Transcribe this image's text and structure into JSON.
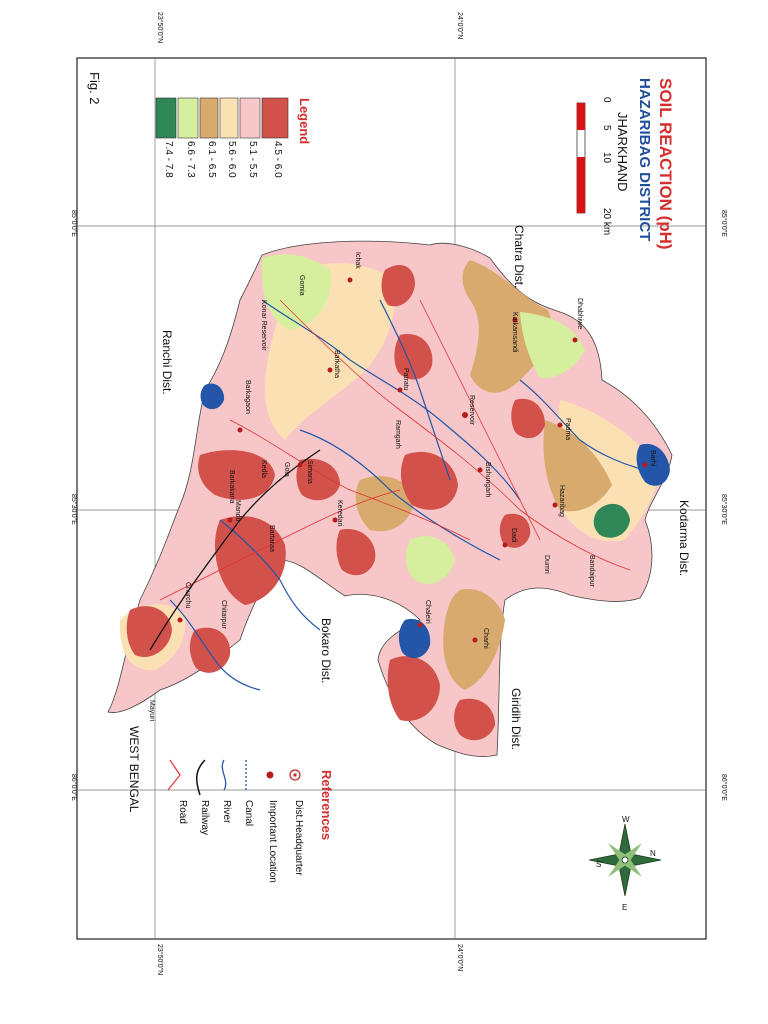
{
  "figure": {
    "label": "Fig. 2",
    "title": "SOIL REACTION (pH)",
    "subtitle": "HAZARIBAG DISTRICT",
    "state": "JHARKHAND"
  },
  "scale": {
    "ticks": [
      "0",
      "5",
      "10",
      "20 km"
    ]
  },
  "graticule": {
    "lat_top": [
      "23°50'0\"N",
      "24°0'0\"N"
    ],
    "lat_bottom": [
      "23°50'0\"N",
      "24°0'0\"N"
    ],
    "lon_left": [
      "85°0'0\"E",
      "85°30'0\"E",
      "86°0'0\"E"
    ],
    "lon_right": [
      "85°0'0\"E",
      "85°30'0\"E",
      "86°0'0\"E"
    ]
  },
  "legend": {
    "title": "Legend",
    "classes": [
      {
        "label": "4.5 - 6.0",
        "color": "#d2514a"
      },
      {
        "label": "5.1 - 5.5",
        "color": "#f7c6c8"
      },
      {
        "label": "5.6 - 6.0",
        "color": "#fbe0b4"
      },
      {
        "label": "6.1 - 6.5",
        "color": "#d9aa6e"
      },
      {
        "label": "6.6 - 7.3",
        "color": "#d6ef9e"
      },
      {
        "label": "7.4 - 7.8",
        "color": "#2f8656"
      }
    ]
  },
  "references": {
    "title": "References",
    "items": [
      {
        "label": "Dist.Headquarter",
        "icon": "dist-headquarter-icon"
      },
      {
        "label": "Important Location",
        "icon": "important-location-icon"
      },
      {
        "label": "Canal",
        "icon": "canal-icon"
      },
      {
        "label": "River",
        "icon": "river-icon"
      },
      {
        "label": "Railway",
        "icon": "railway-icon"
      },
      {
        "label": "Road",
        "icon": "road-icon"
      }
    ]
  },
  "neighbours": {
    "chatra": "Chatra Dist.",
    "kodarma": "Kodarma Dist.",
    "giridih": "Giridih Dist.",
    "bokaro": "Bokaro Dist.",
    "ranchi": "Ranchi Dist.",
    "west_bengal": "WEST BENGAL"
  },
  "places": [
    "Dhabhiwe",
    "Katkamsandi",
    "Padma",
    "Barhi",
    "Reservoir",
    "Bishungarh",
    "Hazaribag",
    "Ichak",
    "Barkatha",
    "Simaria",
    "Keredari",
    "Barkagaon",
    "Mandu",
    "Churchu",
    "Chaleiri",
    "Charhi",
    "Dadi",
    "Patratu",
    "Ramgarh",
    "Gola",
    "Bartaraa",
    "Chitarpur",
    "Kedla",
    "Barkakana",
    "Konar Reservoir",
    "Gomia",
    "Bandaipur",
    "Dumri",
    "Mayuri"
  ],
  "compass": {
    "n": "N",
    "s": "S",
    "e": "E",
    "w": "W"
  }
}
